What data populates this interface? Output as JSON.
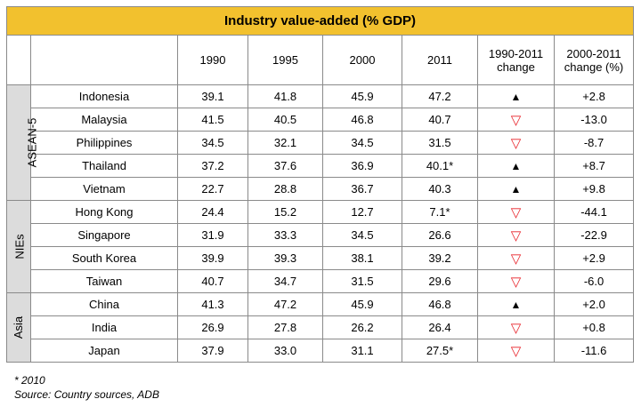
{
  "title": "Industry value-added (% GDP)",
  "columns": [
    "1990",
    "1995",
    "2000",
    "2011",
    "1990-2011\nchange",
    "2000-2011\nchange (%)"
  ],
  "groups": [
    {
      "label": "ASEAN-5",
      "rows": [
        {
          "country": "Indonesia",
          "v1990": "39.1",
          "v1995": "41.8",
          "v2000": "45.9",
          "v2011": "47.2",
          "trend": "up",
          "change": "+2.8"
        },
        {
          "country": "Malaysia",
          "v1990": "41.5",
          "v1995": "40.5",
          "v2000": "46.8",
          "v2011": "40.7",
          "trend": "down",
          "change": "-13.0"
        },
        {
          "country": "Philippines",
          "v1990": "34.5",
          "v1995": "32.1",
          "v2000": "34.5",
          "v2011": "31.5",
          "trend": "down",
          "change": "-8.7"
        },
        {
          "country": "Thailand",
          "v1990": "37.2",
          "v1995": "37.6",
          "v2000": "36.9",
          "v2011": "40.1*",
          "trend": "up",
          "change": "+8.7"
        },
        {
          "country": "Vietnam",
          "v1990": "22.7",
          "v1995": "28.8",
          "v2000": "36.7",
          "v2011": "40.3",
          "trend": "up",
          "change": "+9.8"
        }
      ]
    },
    {
      "label": "NIEs",
      "rows": [
        {
          "country": "Hong Kong",
          "v1990": "24.4",
          "v1995": "15.2",
          "v2000": "12.7",
          "v2011": "7.1*",
          "trend": "down",
          "change": "-44.1"
        },
        {
          "country": "Singapore",
          "v1990": "31.9",
          "v1995": "33.3",
          "v2000": "34.5",
          "v2011": "26.6",
          "trend": "down",
          "change": "-22.9"
        },
        {
          "country": "South Korea",
          "v1990": "39.9",
          "v1995": "39.3",
          "v2000": "38.1",
          "v2011": "39.2",
          "trend": "down",
          "change": "+2.9"
        },
        {
          "country": "Taiwan",
          "v1990": "40.7",
          "v1995": "34.7",
          "v2000": "31.5",
          "v2011": "29.6",
          "trend": "down",
          "change": "-6.0"
        }
      ]
    },
    {
      "label": "Asia",
      "rows": [
        {
          "country": "China",
          "v1990": "41.3",
          "v1995": "47.2",
          "v2000": "45.9",
          "v2011": "46.8",
          "trend": "up",
          "change": "+2.0"
        },
        {
          "country": "India",
          "v1990": "26.9",
          "v1995": "27.8",
          "v2000": "26.2",
          "v2011": "26.4",
          "trend": "down",
          "change": "+0.8"
        },
        {
          "country": "Japan",
          "v1990": "37.9",
          "v1995": "33.0",
          "v2000": "31.1",
          "v2011": "27.5*",
          "trend": "down",
          "change": "-11.6"
        }
      ]
    }
  ],
  "symbols": {
    "up": "▲",
    "down": "▽"
  },
  "colors": {
    "title_bg": "#f2c12e",
    "group_bg": "#dcdcdc",
    "down": "#e8232a",
    "up": "#000000"
  },
  "footnote": {
    "note": "* 2010",
    "source": "Source: Country sources, ADB"
  }
}
